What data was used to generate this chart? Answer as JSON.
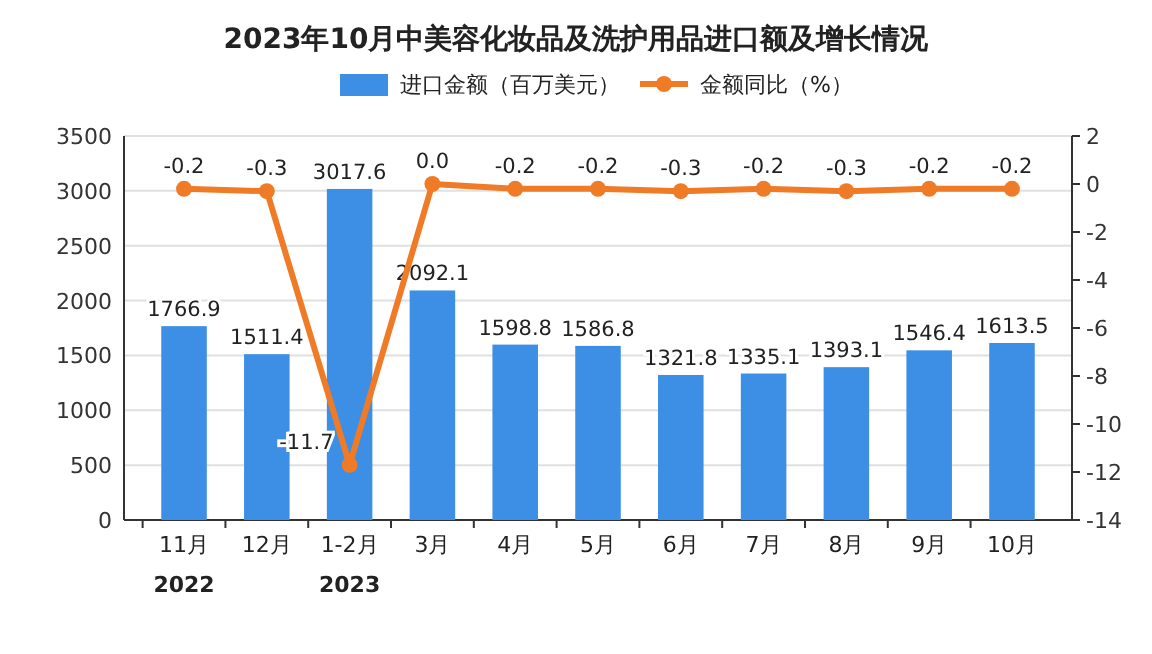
{
  "chart_data": {
    "type": "bar",
    "title": "2023年10月中美容化妆品及洗护用品进口额及增长情况",
    "categories": [
      "11月\n2022",
      "12月",
      "1-2月\n2023",
      "3月",
      "4月",
      "5月",
      "6月",
      "7月",
      "8月",
      "9月",
      "10月"
    ],
    "series": [
      {
        "name": "进口金额（百万美元）",
        "color": "#3d8fe6",
        "values": [
          1766.9,
          1511.4,
          3017.6,
          2092.1,
          1598.8,
          1586.8,
          1321.8,
          1335.1,
          1393.1,
          1546.4,
          1613.5
        ],
        "value_labels": [
          "1766.9",
          "1511.4",
          "3017.6",
          "2092.1",
          "1598.8",
          "1586.8",
          "1321.8",
          "1335.1",
          "1393.1",
          "1546.4",
          "1613.5"
        ]
      },
      {
        "name": "金额同比（%）",
        "type": "line",
        "axis": "y2",
        "color": "#f07b26",
        "marker": "circle",
        "values": [
          -0.2,
          -0.3,
          -11.7,
          0.0,
          -0.2,
          -0.2,
          -0.3,
          -0.2,
          -0.3,
          -0.2,
          -0.2
        ],
        "value_labels": [
          "-0.2",
          "-0.3",
          "-11.7",
          "0.0",
          "-0.2",
          "-0.2",
          "-0.3",
          "-0.2",
          "-0.3",
          "-0.2",
          "-0.2"
        ]
      }
    ],
    "ylim": [
      0,
      3500
    ],
    "yticks": [
      0,
      500,
      1000,
      1500,
      2000,
      2500,
      3000,
      3500
    ],
    "y2lim": [
      -14,
      2
    ],
    "y2ticks": [
      -14,
      -12,
      -10,
      -8,
      -6,
      -4,
      -2,
      0,
      2
    ],
    "grid": "y",
    "legend": "top"
  }
}
